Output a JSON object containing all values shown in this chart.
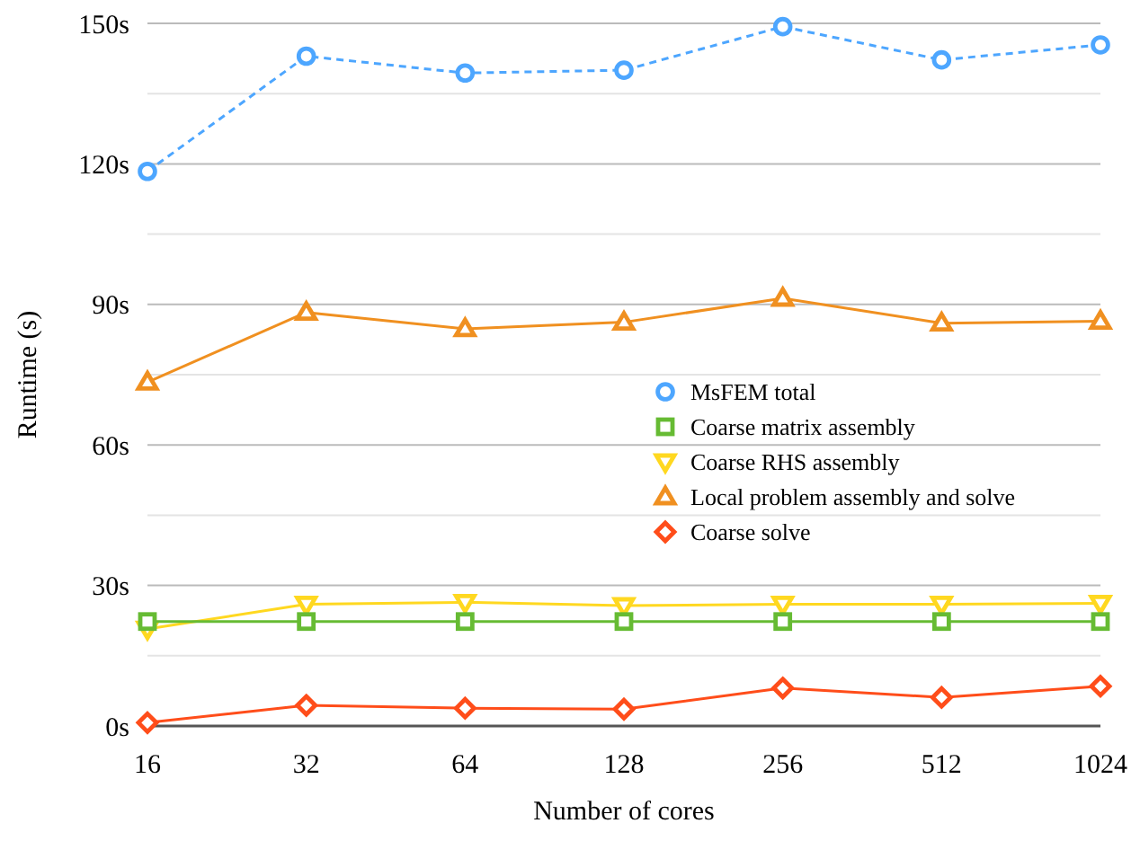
{
  "chart_data": {
    "type": "line",
    "xlabel": "Number of cores",
    "ylabel": "Runtime (s)",
    "categories": [
      "16",
      "32",
      "64",
      "128",
      "256",
      "512",
      "1024"
    ],
    "ylim": [
      0,
      150
    ],
    "yticks": [
      {
        "value": 0,
        "label": "0s"
      },
      {
        "value": 15,
        "label": null
      },
      {
        "value": 30,
        "label": "30s"
      },
      {
        "value": 45,
        "label": null
      },
      {
        "value": 60,
        "label": "60s"
      },
      {
        "value": 75,
        "label": null
      },
      {
        "value": 90,
        "label": "90s"
      },
      {
        "value": 105,
        "label": null
      },
      {
        "value": 120,
        "label": "120s"
      },
      {
        "value": 135,
        "label": null
      },
      {
        "value": 150,
        "label": "150s"
      }
    ],
    "grid": "y",
    "legend": "right",
    "series": [
      {
        "name": "MsFEM total",
        "color": "#4da6ff",
        "marker": "circle",
        "line_style": "dashed",
        "values": [
          118.4,
          143,
          139.4,
          140,
          149.3,
          142.2,
          145.4
        ]
      },
      {
        "name": "Coarse matrix assembly",
        "color": "#66bb33",
        "marker": "square",
        "line_style": "solid",
        "values": [
          22.3,
          22.3,
          22.3,
          22.3,
          22.3,
          22.3,
          22.3
        ]
      },
      {
        "name": "Coarse RHS assembly",
        "color": "#ffd820",
        "marker": "triangle-down",
        "line_style": "solid",
        "values": [
          20.7,
          26,
          26.4,
          25.7,
          26,
          26,
          26.2
        ]
      },
      {
        "name": "Local problem assembly and solve",
        "color": "#f09020",
        "marker": "triangle",
        "line_style": "solid",
        "values": [
          73.4,
          88.3,
          84.8,
          86.2,
          91.3,
          86,
          86.4
        ]
      },
      {
        "name": "Coarse solve",
        "color": "#ff4d1a",
        "marker": "diamond",
        "line_style": "solid",
        "values": [
          0.7,
          4.4,
          3.8,
          3.6,
          8.1,
          6.1,
          8.5
        ]
      }
    ]
  }
}
